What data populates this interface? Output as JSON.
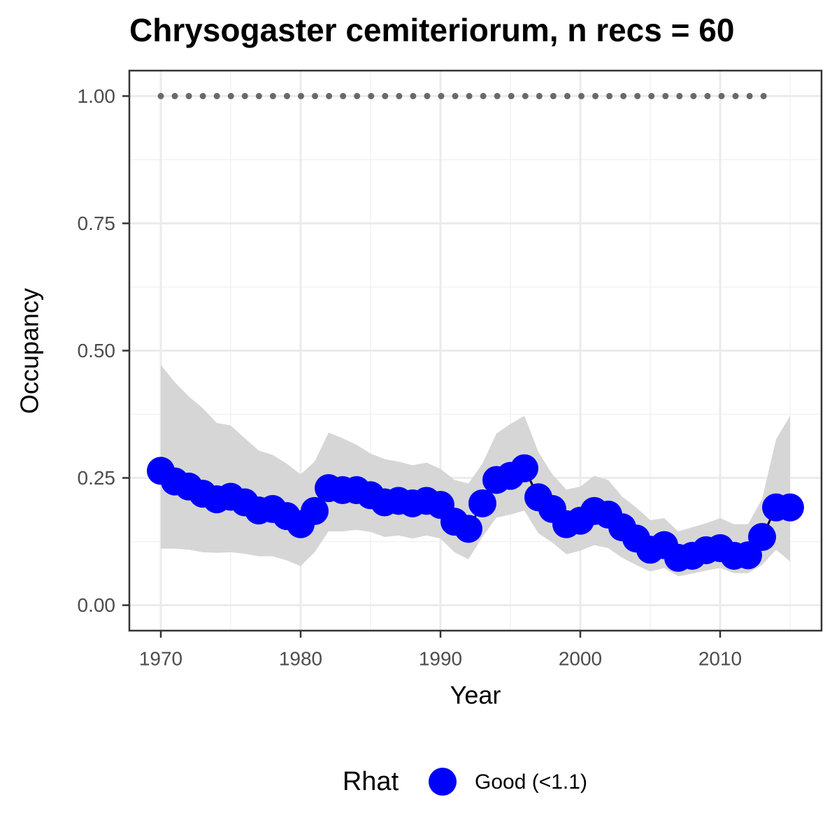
{
  "chart_data": {
    "type": "line",
    "title": "Chrysogaster cemiteriorum, n recs = 60",
    "x_label": "Year",
    "y_label": "Occupancy",
    "legend_title": "Rhat",
    "legend_position": "bottom",
    "grid": true,
    "x": [
      1970,
      1971,
      1972,
      1973,
      1974,
      1975,
      1976,
      1977,
      1978,
      1979,
      1980,
      1981,
      1982,
      1983,
      1984,
      1985,
      1986,
      1987,
      1988,
      1989,
      1990,
      1991,
      1992,
      1993,
      1994,
      1995,
      1996,
      1997,
      1998,
      1999,
      2000,
      2001,
      2002,
      2003,
      2004,
      2005,
      2006,
      2007,
      2008,
      2009,
      2010,
      2011,
      2012,
      2013,
      2014,
      2015
    ],
    "series": [
      {
        "name": "Good (<1.1)",
        "color": "#0000ff",
        "line_color": "#000000",
        "values": [
          0.264,
          0.243,
          0.233,
          0.219,
          0.208,
          0.213,
          0.202,
          0.186,
          0.189,
          0.175,
          0.159,
          0.185,
          0.23,
          0.226,
          0.226,
          0.216,
          0.202,
          0.205,
          0.2,
          0.205,
          0.197,
          0.164,
          0.15,
          0.2,
          0.246,
          0.254,
          0.269,
          0.212,
          0.189,
          0.159,
          0.166,
          0.185,
          0.178,
          0.153,
          0.131,
          0.109,
          0.118,
          0.093,
          0.097,
          0.108,
          0.112,
          0.097,
          0.098,
          0.134,
          0.192,
          0.192
        ],
        "lower": [
          0.111,
          0.111,
          0.109,
          0.104,
          0.103,
          0.104,
          0.101,
          0.096,
          0.096,
          0.088,
          0.077,
          0.104,
          0.145,
          0.145,
          0.148,
          0.144,
          0.134,
          0.137,
          0.131,
          0.137,
          0.131,
          0.104,
          0.09,
          0.134,
          0.172,
          0.178,
          0.186,
          0.141,
          0.123,
          0.1,
          0.107,
          0.118,
          0.112,
          0.093,
          0.079,
          0.066,
          0.073,
          0.057,
          0.062,
          0.068,
          0.073,
          0.063,
          0.063,
          0.079,
          0.109,
          0.086
        ],
        "upper": [
          0.472,
          0.438,
          0.41,
          0.387,
          0.358,
          0.353,
          0.328,
          0.304,
          0.295,
          0.278,
          0.257,
          0.282,
          0.339,
          0.328,
          0.315,
          0.298,
          0.287,
          0.282,
          0.275,
          0.28,
          0.268,
          0.246,
          0.239,
          0.278,
          0.337,
          0.356,
          0.372,
          0.301,
          0.257,
          0.227,
          0.233,
          0.254,
          0.246,
          0.213,
          0.192,
          0.167,
          0.171,
          0.145,
          0.153,
          0.161,
          0.171,
          0.159,
          0.159,
          0.209,
          0.326,
          0.372
        ],
        "band_color": "#d6d6d6"
      }
    ],
    "reference_line": {
      "x": [
        1970,
        2014
      ],
      "y": 1,
      "color": "#696969",
      "style": "dotted"
    },
    "xlim": [
      1967.75,
      2017.25
    ],
    "xticks": [
      1970,
      1980,
      1990,
      2000,
      2010
    ],
    "minor_xticks": [
      1975,
      1985,
      1995,
      2005,
      2015
    ],
    "ylim": [
      -0.05,
      1.05
    ],
    "yticks": [
      {
        "value": 0,
        "label": "0.00"
      },
      {
        "value": 0.25,
        "label": "0.25"
      },
      {
        "value": 0.5,
        "label": "0.50"
      },
      {
        "value": 0.75,
        "label": "0.75"
      },
      {
        "value": 1,
        "label": "1.00"
      }
    ],
    "minor_yticks": [
      0.125,
      0.375,
      0.625,
      0.875
    ]
  }
}
